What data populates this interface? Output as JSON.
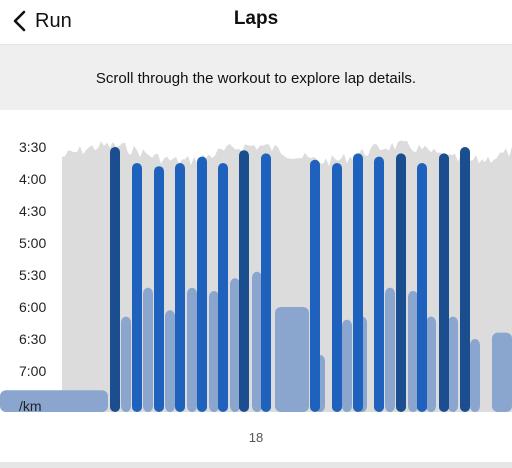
{
  "header": {
    "back_label": "Run",
    "title": "Laps"
  },
  "banner": {
    "text": "Scroll through the workout to explore lap details."
  },
  "chart_data": {
    "type": "bar",
    "y_ticks": [
      "3:30",
      "4:00",
      "4:30",
      "5:00",
      "5:30",
      "6:00",
      "6:30",
      "7:00"
    ],
    "y_unit": "/km",
    "y_range_min_per_km": [
      3.5,
      7.5
    ],
    "y_axis_inverted": true,
    "x_label": "18",
    "lap_pace_min_per_km": [
      3.5,
      3.75,
      3.8,
      3.75,
      3.65,
      3.75,
      3.55,
      3.6,
      3.7,
      3.75,
      3.6,
      3.65,
      3.6,
      3.75,
      3.6,
      3.5
    ],
    "lap_colors": [
      "#1a4e8e",
      "#1f62bd",
      "#1f62bd",
      "#1f62bd",
      "#1f62bd",
      "#1f62bd",
      "#1a4e8e",
      "#1f62bd",
      "#1f62bd",
      "#1f62bd",
      "#1f62bd",
      "#1f62bd",
      "#1a4e8e",
      "#1f62bd",
      "#1a4e8e",
      "#1a4e8e"
    ],
    "rest_pace_min_per_km": [
      7.3,
      6.15,
      5.7,
      6.05,
      5.7,
      5.75,
      5.55,
      5.45,
      6.0,
      6.75,
      6.2,
      6.15,
      5.7,
      5.75,
      6.15,
      6.15,
      6.5,
      6.4
    ],
    "colors": {
      "effort_bar": "#1f62bd",
      "effort_bar_dark": "#1a4e8e",
      "rest_bar": "#8aa6cf",
      "pace_background": "#dcdcdc"
    }
  }
}
